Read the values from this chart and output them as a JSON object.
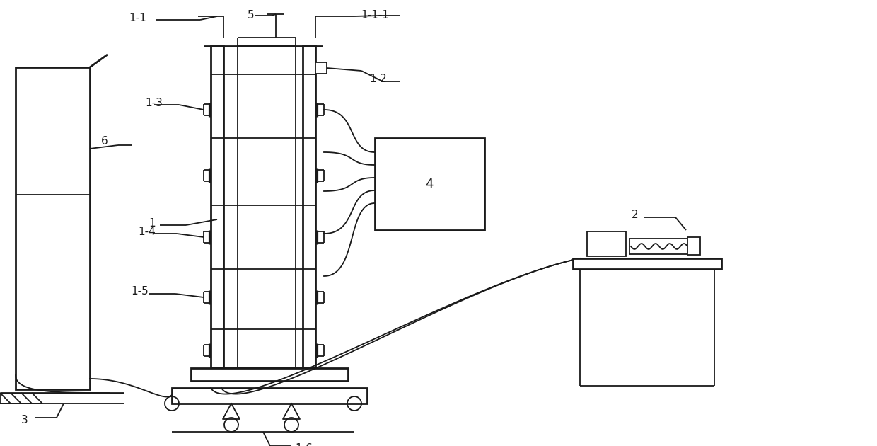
{
  "bg_color": "#ffffff",
  "line_color": "#1a1a1a",
  "lw": 1.3,
  "lw_thick": 2.0,
  "figsize": [
    12.4,
    6.3
  ],
  "dpi": 100
}
